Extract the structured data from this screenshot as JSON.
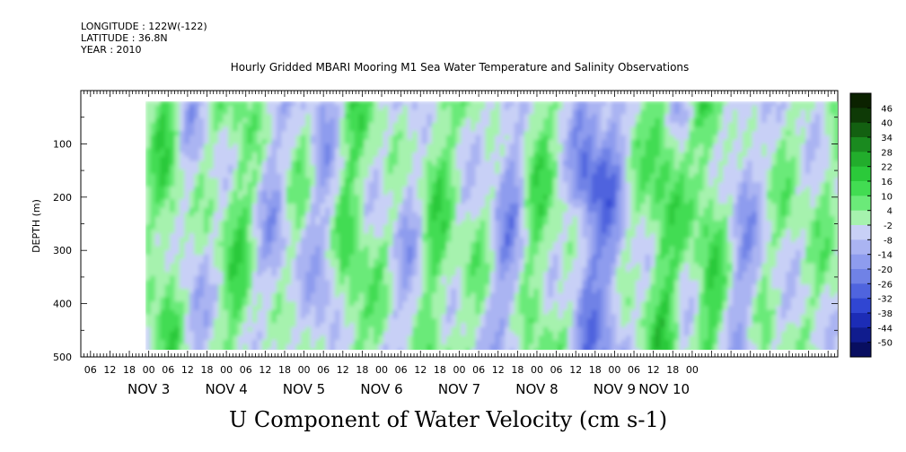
{
  "header": {
    "longitude": "LONGITUDE : 122W(-122)",
    "latitude": "LATITUDE : 36.8N",
    "year": "YEAR : 2010"
  },
  "chart_data": {
    "type": "heatmap",
    "title": "Hourly Gridded MBARI Mooring M1 Sea Water Temperature and Salinity Observations",
    "xlabel": "U Component of Water Velocity (cm s-1)",
    "ylabel": "DEPTH (m)",
    "ylim": [
      500,
      0
    ],
    "yticks": [
      100,
      200,
      300,
      400,
      500
    ],
    "data_depth_range": [
      20,
      490
    ],
    "xlim_hours": [
      -9,
      225
    ],
    "data_hours_range": [
      11,
      225
    ],
    "hour_ticks": [
      "06",
      "12",
      "18",
      "00",
      "06",
      "12",
      "18",
      "00",
      "06",
      "12",
      "18",
      "00",
      "06",
      "12",
      "18",
      "00",
      "06",
      "12",
      "18",
      "00",
      "06",
      "12",
      "18",
      "00",
      "06",
      "12",
      "18",
      "00",
      "06",
      "12",
      "18",
      "00"
    ],
    "day_labels": [
      {
        "label": "NOV  3",
        "hour": 12
      },
      {
        "label": "NOV  4",
        "hour": 36
      },
      {
        "label": "NOV  5",
        "hour": 60
      },
      {
        "label": "NOV  6",
        "hour": 84
      },
      {
        "label": "NOV  7",
        "hour": 108
      },
      {
        "label": "NOV  8",
        "hour": 132
      },
      {
        "label": "NOV  9",
        "hour": 156
      },
      {
        "label": "NOV 10",
        "hour": 168
      }
    ],
    "colorbar": {
      "levels": [
        46,
        40,
        34,
        28,
        22,
        16,
        10,
        4,
        -2,
        -8,
        -14,
        -20,
        -26,
        -32,
        -38,
        -44,
        -50
      ],
      "range": [
        -50,
        50
      ],
      "colors": [
        "#0b2200",
        "#0e3a06",
        "#136011",
        "#1a8a1f",
        "#22ad2c",
        "#2bc93a",
        "#42dc52",
        "#6bea79",
        "#a6f2ae",
        "#c8d0f6",
        "#aab4f2",
        "#8e9cee",
        "#7082e6",
        "#4f64de",
        "#3046d2",
        "#1c2cb6",
        "#101c8e",
        "#080e60"
      ]
    },
    "field_summary": "U velocity mostly between -30 and +20 cm/s; alternating green (eastward) and blue (westward) vertical bands with strongest blue near Nov 7 18-00 and Nov 9 00-06 at ~100-200 m"
  }
}
